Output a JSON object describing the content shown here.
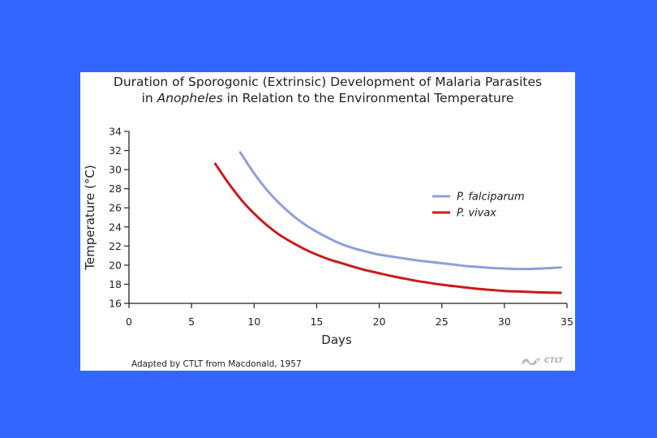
{
  "chart_data": {
    "type": "line",
    "title_line1": "Duration of Sporogonic (Extrinsic) Development of Malaria Parasites",
    "title_line2_prefix": "in ",
    "title_line2_italic": "Anopheles",
    "title_line2_suffix": " in Relation to the Environmental Temperature",
    "xlabel": "Days",
    "ylabel": "Temperature (°C)",
    "xlim": [
      0,
      35
    ],
    "ylim": [
      16,
      34
    ],
    "x_ticks": [
      0,
      5,
      10,
      15,
      20,
      25,
      30,
      35
    ],
    "y_ticks": [
      16,
      18,
      20,
      22,
      24,
      26,
      28,
      30,
      32,
      34
    ],
    "grid": false,
    "legend_position": "right",
    "series": [
      {
        "name": "P. falciparum",
        "color": "#8e9fdc",
        "x": [
          8.9,
          10,
          11,
          12,
          13,
          14,
          15,
          16,
          17,
          18,
          19,
          20,
          21,
          22,
          23,
          24,
          25,
          26,
          27,
          28,
          29,
          30,
          31,
          32,
          33,
          34.5
        ],
        "y": [
          31.8,
          29.6,
          27.9,
          26.5,
          25.3,
          24.3,
          23.5,
          22.8,
          22.2,
          21.75,
          21.4,
          21.1,
          20.9,
          20.7,
          20.5,
          20.35,
          20.2,
          20.05,
          19.9,
          19.8,
          19.7,
          19.65,
          19.6,
          19.6,
          19.65,
          19.75
        ]
      },
      {
        "name": "P. vivax",
        "color": "#cc1a1a",
        "x": [
          6.9,
          8,
          9,
          10,
          11,
          12,
          13,
          14,
          15,
          16,
          17,
          18,
          19,
          20,
          21,
          22,
          23,
          24,
          25,
          26,
          27,
          28,
          29,
          30,
          31,
          32,
          33,
          34.5
        ],
        "y": [
          30.6,
          28.5,
          26.8,
          25.4,
          24.2,
          23.2,
          22.4,
          21.7,
          21.1,
          20.6,
          20.2,
          19.8,
          19.45,
          19.15,
          18.85,
          18.6,
          18.35,
          18.15,
          17.95,
          17.8,
          17.65,
          17.5,
          17.4,
          17.3,
          17.25,
          17.2,
          17.15,
          17.1
        ]
      }
    ]
  },
  "credit": "Adapted by CTLT from Macdonald, 1957",
  "logo_text": "CTLT"
}
